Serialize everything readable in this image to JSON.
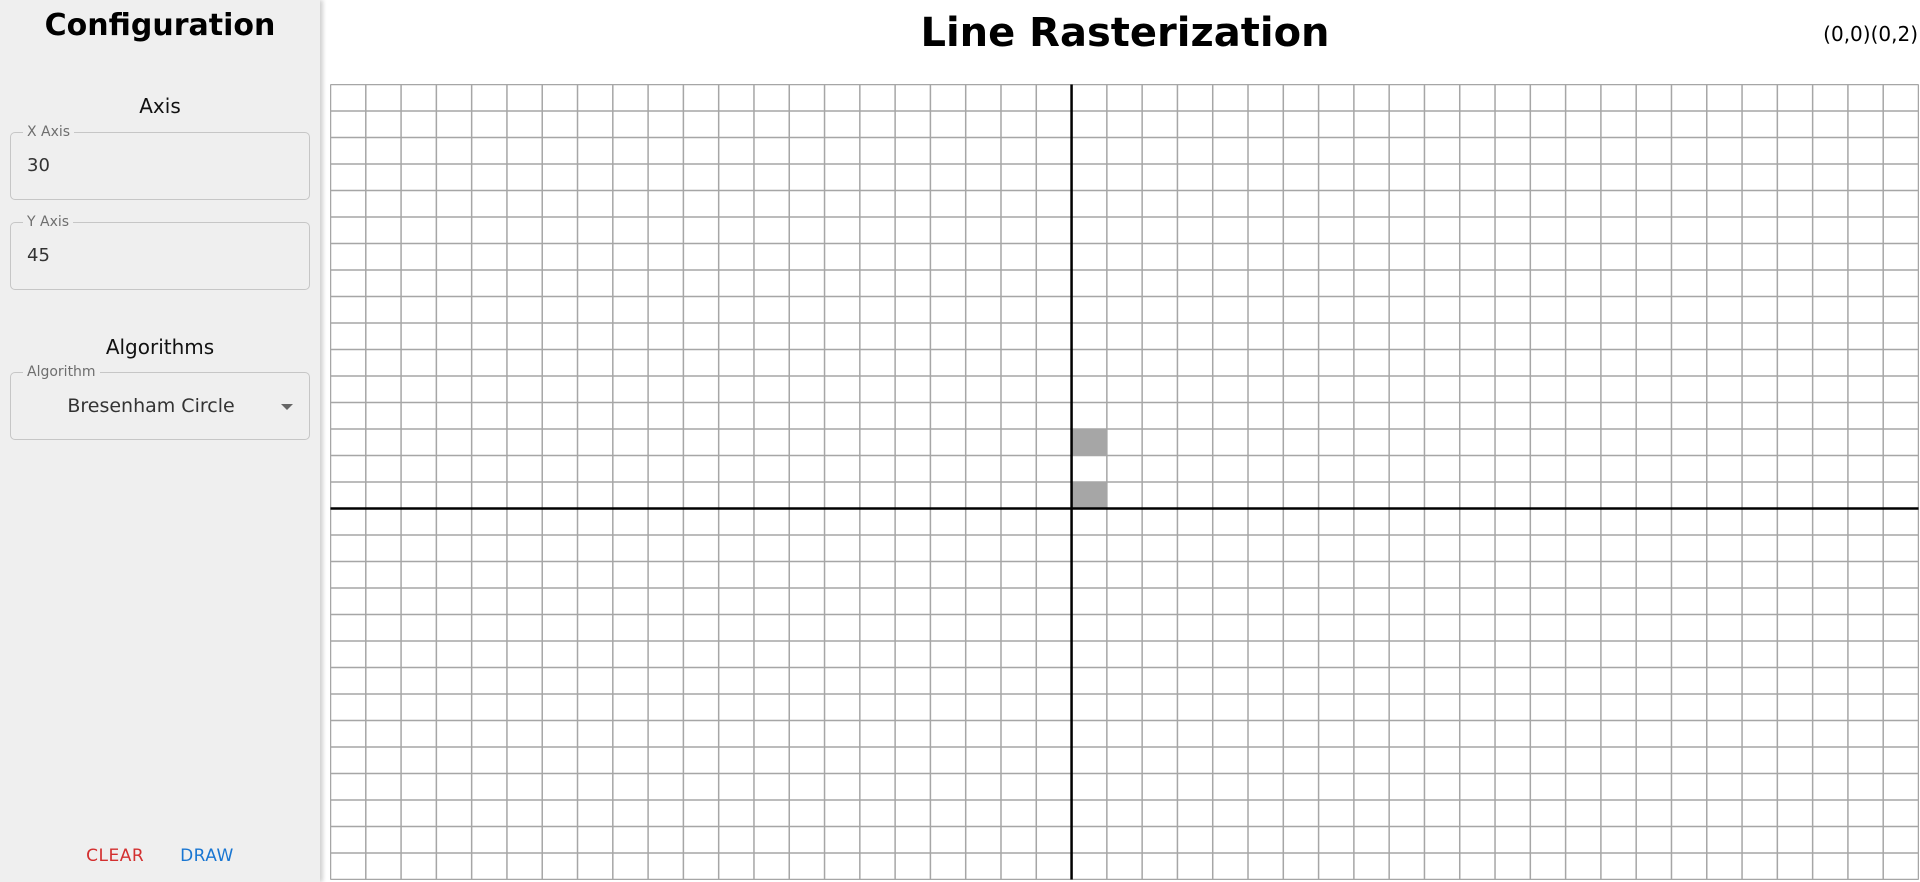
{
  "sidebar": {
    "title": "Configuration",
    "axis_section": "Axis",
    "x_axis": {
      "label": "X Axis",
      "value": "30"
    },
    "y_axis": {
      "label": "Y Axis",
      "value": "45"
    },
    "algorithms_section": "Algorithms",
    "algorithm": {
      "label": "Algorithm",
      "value": "Bresenham Circle"
    },
    "clear_label": "CLEAR",
    "draw_label": "DRAW"
  },
  "main": {
    "title": "Line Rasterization",
    "coordinates": "(0,0)(0,2)"
  },
  "grid": {
    "columns": 45,
    "rows": 30,
    "y_axis_column": 21,
    "x_axis_row": 16,
    "filled_cells": [
      {
        "col": 21,
        "row": 13
      },
      {
        "col": 21,
        "row": 15
      }
    ],
    "line_color": "#a6a6a6",
    "axis_color": "#000000",
    "fill_color": "#a6a6a6"
  }
}
